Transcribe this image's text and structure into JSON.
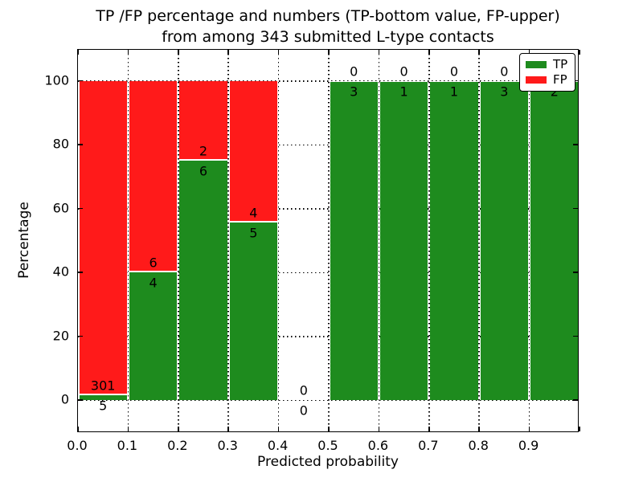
{
  "figure": {
    "title_lines": [
      "TP /FP percentage and numbers (TP-bottom value, FP-upper)",
      "from among 343 submitted L-type contacts"
    ]
  },
  "chart_data": {
    "type": "bar",
    "stacked": true,
    "title": "TP /FP percentage and numbers (TP-bottom value, FP-upper) from among 343 submitted L-type contacts",
    "xlabel": "Predicted probability",
    "ylabel": "Percentage",
    "xlim": [
      0.0,
      1.0
    ],
    "ylim": [
      -10,
      110
    ],
    "x_tick_labels": [
      "0.0",
      "0.1",
      "0.2",
      "0.3",
      "0.4",
      "0.5",
      "0.6",
      "0.7",
      "0.8",
      "0.9"
    ],
    "y_tick_values": [
      0,
      20,
      40,
      60,
      80,
      100
    ],
    "grid": "dotted both axes",
    "bin_edges": [
      0.0,
      0.1,
      0.2,
      0.3,
      0.4,
      0.5,
      0.6,
      0.7,
      0.8,
      0.9,
      1.0
    ],
    "series": [
      {
        "name": "TP",
        "counts": [
          5,
          4,
          6,
          5,
          0,
          3,
          1,
          1,
          3,
          2
        ],
        "color": "#1e8b1e"
      },
      {
        "name": "FP",
        "counts": [
          301,
          6,
          2,
          4,
          0,
          0,
          0,
          0,
          0,
          0
        ],
        "color": "#ff1a1a"
      }
    ],
    "tp_percent_of_bin": [
      1.63,
      40.0,
      75.0,
      55.56,
      0,
      100,
      100,
      100,
      100,
      100
    ],
    "total_contacts": 343,
    "legend": {
      "position": "upper right",
      "entries": [
        {
          "label": "TP",
          "color": "#1e8b1e"
        },
        {
          "label": "FP",
          "color": "#ff1a1a"
        }
      ]
    }
  }
}
